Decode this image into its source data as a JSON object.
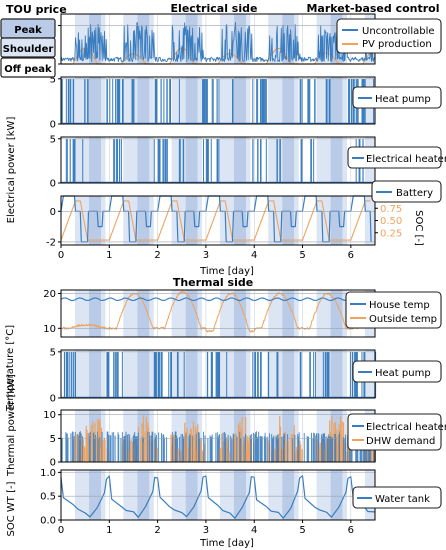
{
  "header": {
    "tou_title": "TOU price",
    "electrical_title": "Electrical side",
    "thermal_title": "Thermal side",
    "control_title": "Market-based control"
  },
  "tou_legend": [
    {
      "label": "Peak",
      "color": "#b9cbe6"
    },
    {
      "label": "Shoulder",
      "color": "#dce5f3"
    },
    {
      "label": "Off peak",
      "color": "#ffffff"
    }
  ],
  "colors": {
    "blue": "#3a7dbf",
    "orange": "#f0a35e",
    "peak": "#b9cbe6",
    "shoulder": "#dce5f3",
    "offpeak": "#ffffff"
  },
  "shared_labels": {
    "electrical_ylabel": "Electrical power [kW]",
    "thermal_ylabel": "Thermal power [kW]",
    "time_label": "Time [day]"
  },
  "chart_data": [
    {
      "id": "p1",
      "type": "line",
      "ylim": [
        0,
        6.5
      ],
      "yticks": [
        0,
        5
      ],
      "grid": true,
      "legend_position": "top-right",
      "series": [
        {
          "name": "Uncontrollable",
          "color": "#3a7dbf"
        },
        {
          "name": "PV production",
          "color": "#f0a35e"
        }
      ]
    },
    {
      "id": "p2",
      "type": "bar",
      "ylim": [
        0,
        5.2
      ],
      "yticks": [
        0,
        5
      ],
      "grid": true,
      "legend_position": "right",
      "series": [
        {
          "name": "Heat pump",
          "color": "#3a7dbf"
        }
      ]
    },
    {
      "id": "p3",
      "type": "bar",
      "ylim": [
        0,
        5.2
      ],
      "yticks": [
        0,
        5
      ],
      "grid": true,
      "legend_position": "right",
      "series": [
        {
          "name": "Electrical heater",
          "color": "#3a7dbf"
        }
      ]
    },
    {
      "id": "p4",
      "type": "line",
      "ylim": [
        -2.2,
        1.0
      ],
      "yticks": [
        -2,
        0
      ],
      "y2ticks": [
        "0.25",
        "0.50",
        "0.75"
      ],
      "y2label": "SOC [-]",
      "xlabel": "Time [day]",
      "xticks": [
        "0",
        "1",
        "2",
        "3",
        "4",
        "5",
        "6"
      ],
      "xlim": [
        0,
        6.5
      ],
      "grid": true,
      "legend_position": "top-right",
      "series": [
        {
          "name": "Battery",
          "color": "#3a7dbf"
        },
        {
          "color": "#f0a35e"
        }
      ]
    },
    {
      "id": "p5",
      "type": "line",
      "ylim": [
        7.5,
        21
      ],
      "yticks": [
        10,
        20
      ],
      "ylabel": "Temperature [°C]",
      "grid": true,
      "legend_position": "right",
      "series": [
        {
          "name": "House temp",
          "color": "#3a7dbf",
          "values": [
            18.4,
            18.2,
            18.6,
            18.1,
            18.7,
            18.3,
            18.5
          ]
        },
        {
          "name": "Outside temp",
          "color": "#f0a35e",
          "values": [
            10.5,
            11.0,
            20.0,
            9.0,
            20.5,
            9.5,
            20.0,
            11.0,
            20.0,
            10.5,
            13.5,
            10.5
          ]
        }
      ]
    },
    {
      "id": "p6",
      "type": "bar",
      "ylim": [
        0,
        5.2
      ],
      "yticks": [
        0,
        5
      ],
      "grid": true,
      "legend_position": "right",
      "series": [
        {
          "name": "Heat pump",
          "color": "#3a7dbf"
        }
      ]
    },
    {
      "id": "p7",
      "type": "bar",
      "ylim": [
        0,
        11
      ],
      "yticks": [
        0,
        5,
        10
      ],
      "grid": true,
      "legend_position": "right",
      "series": [
        {
          "name": "Electrical heater",
          "color": "#3a7dbf"
        },
        {
          "name": "DHW demand",
          "color": "#f0a35e"
        }
      ]
    },
    {
      "id": "p8",
      "type": "line",
      "ylim": [
        0,
        1.05
      ],
      "yticks": [
        "0.0",
        "0.5",
        "1.0"
      ],
      "ylabel": "SOC WT [-]",
      "xlabel": "Time [day]",
      "xticks": [
        "0",
        "1",
        "2",
        "3",
        "4",
        "5",
        "6"
      ],
      "xlim": [
        0,
        6.5
      ],
      "grid": true,
      "legend_position": "right",
      "series": [
        {
          "name": "Water tank",
          "color": "#3a7dbf"
        }
      ]
    }
  ]
}
